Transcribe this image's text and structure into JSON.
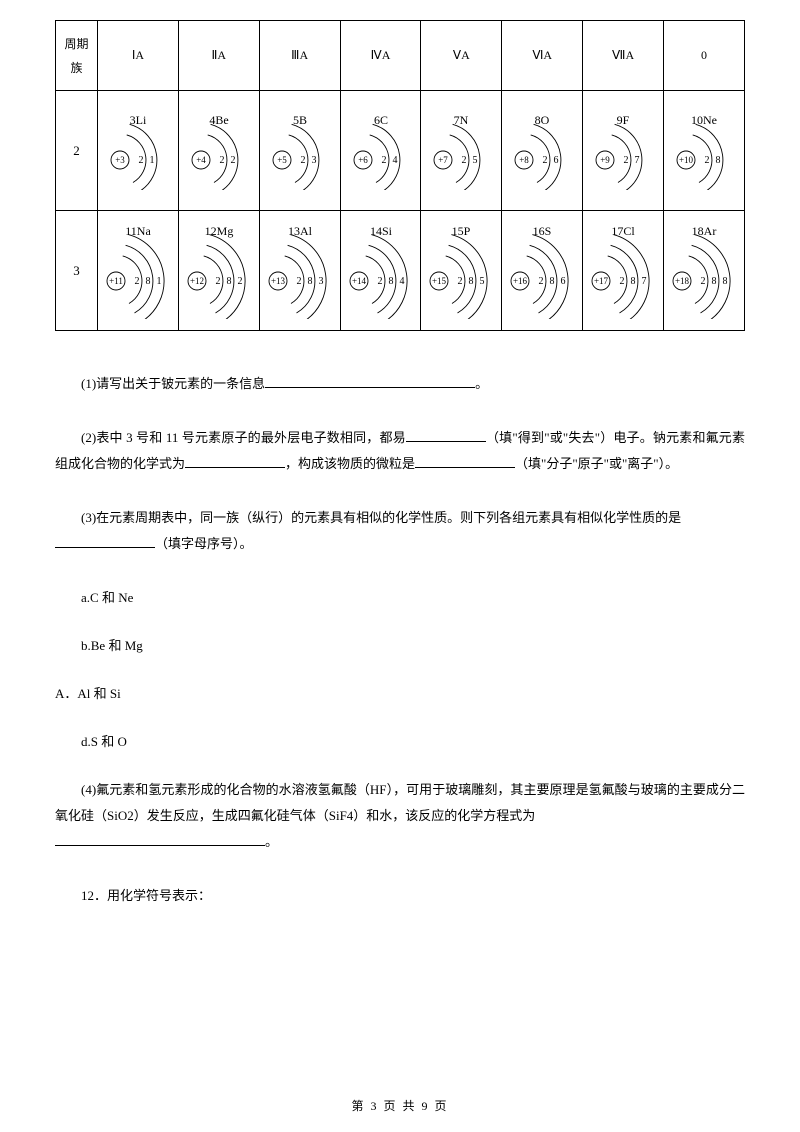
{
  "table": {
    "header_first_line1": "周期",
    "header_first_line2": "族",
    "groups": [
      "ⅠA",
      "ⅡA",
      "ⅢA",
      "ⅣA",
      "ⅤA",
      "ⅥA",
      "ⅦA",
      "0"
    ],
    "rows": [
      {
        "period": "2",
        "shells_count": 2,
        "elements": [
          {
            "num": "3",
            "sym": "Li",
            "core": "+3",
            "shells": [
              "2",
              "1"
            ]
          },
          {
            "num": "4",
            "sym": "Be",
            "core": "+4",
            "shells": [
              "2",
              "2"
            ]
          },
          {
            "num": "5",
            "sym": "B",
            "core": "+5",
            "shells": [
              "2",
              "3"
            ]
          },
          {
            "num": "6",
            "sym": "C",
            "core": "+6",
            "shells": [
              "2",
              "4"
            ]
          },
          {
            "num": "7",
            "sym": "N",
            "core": "+7",
            "shells": [
              "2",
              "5"
            ]
          },
          {
            "num": "8",
            "sym": "O",
            "core": "+8",
            "shells": [
              "2",
              "6"
            ]
          },
          {
            "num": "9",
            "sym": "F",
            "core": "+9",
            "shells": [
              "2",
              "7"
            ]
          },
          {
            "num": "10",
            "sym": "Ne",
            "core": "+10",
            "shells": [
              "2",
              "8"
            ]
          }
        ]
      },
      {
        "period": "3",
        "shells_count": 3,
        "elements": [
          {
            "num": "11",
            "sym": "Na",
            "core": "+11",
            "shells": [
              "2",
              "8",
              "1"
            ]
          },
          {
            "num": "12",
            "sym": "Mg",
            "core": "+12",
            "shells": [
              "2",
              "8",
              "2"
            ]
          },
          {
            "num": "13",
            "sym": "Al",
            "core": "+13",
            "shells": [
              "2",
              "8",
              "3"
            ]
          },
          {
            "num": "14",
            "sym": "Si",
            "core": "+14",
            "shells": [
              "2",
              "8",
              "4"
            ]
          },
          {
            "num": "15",
            "sym": "P",
            "core": "+15",
            "shells": [
              "2",
              "8",
              "5"
            ]
          },
          {
            "num": "16",
            "sym": "S",
            "core": "+16",
            "shells": [
              "2",
              "8",
              "6"
            ]
          },
          {
            "num": "17",
            "sym": "Cl",
            "core": "+17",
            "shells": [
              "2",
              "8",
              "7"
            ]
          },
          {
            "num": "18",
            "sym": "Ar",
            "core": "+18",
            "shells": [
              "2",
              "8",
              "8"
            ]
          }
        ]
      }
    ]
  },
  "q1": {
    "prefix": "(1)请写出关于铍元素的一条信息",
    "suffix": "。"
  },
  "q2": {
    "part1": "(2)表中 3 号和 11 号元素原子的最外层电子数相同，都易",
    "part2": "（填\"得到\"或\"失去\"）电子。钠元素和氟元素组成化合物的化学式为",
    "part3": "，构成该物质的微粒是",
    "part4": "（填\"分子\"原子\"或\"离子\"）。"
  },
  "q3": {
    "line1": "(3)在元素周期表中，同一族（纵行）的元素具有相似的化学性质。则下列各组元素具有相似化学性质的是",
    "line2": "（填字母序号）。",
    "opts": [
      "a.C 和 Ne",
      "b.Be 和 Mg",
      "A．Al 和 Si",
      "d.S 和 O"
    ]
  },
  "q4": {
    "text": "(4)氟元素和氢元素形成的化合物的水溶液氢氟酸（HF），可用于玻璃雕刻，其主要原理是氢氟酸与玻璃的主要成分二氧化硅（SiO2）发生反应，生成四氟化硅气体（SiF4）和水，该反应的化学方程式为",
    "suffix": "。"
  },
  "q12": "12．用化学符号表示：",
  "footer": {
    "prefix": "第 ",
    "page": "3",
    "mid": " 页 共 ",
    "total": "9",
    "suffix": " 页"
  },
  "svg_style": {
    "stroke": "#000000",
    "stroke_width": 0.9,
    "core_radius": 9,
    "font_size_core": 9,
    "font_size_shell": 10,
    "font_size_label": 12
  }
}
